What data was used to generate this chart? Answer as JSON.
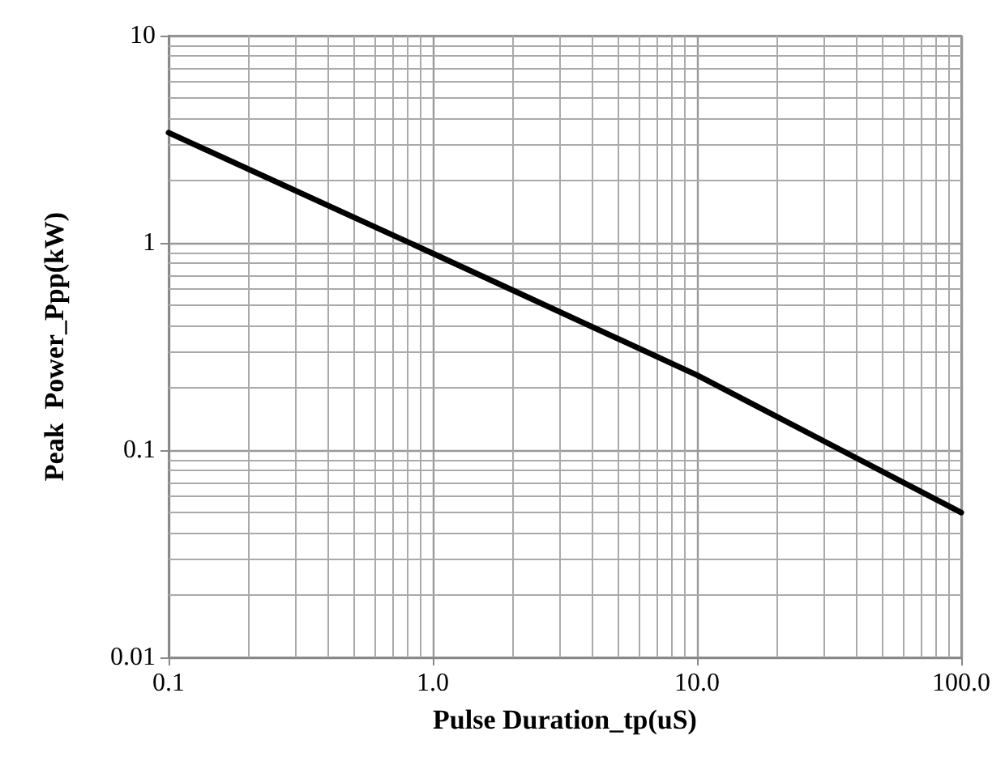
{
  "chart_data": {
    "type": "line",
    "xlabel": "Pulse Duration_tp(uS)",
    "ylabel": "Peak  Power_Ppp(kW)",
    "x": [
      0.1,
      1,
      10,
      100
    ],
    "series": [
      {
        "color": "#000000",
        "values": [
          3.4,
          0.89,
          0.23,
          0.05
        ]
      }
    ],
    "log": "xy",
    "xlim": [
      0.1,
      100
    ],
    "ylim": [
      0.01,
      10
    ],
    "xticks": [
      0.1,
      {
        "value": 1,
        "label": "1.0"
      },
      {
        "value": 10,
        "label": "10.0"
      },
      {
        "value": 100,
        "label": "100.0"
      }
    ],
    "yticks": [
      0.01,
      0.1,
      1,
      10
    ],
    "grid": true,
    "marker": "none",
    "line_style": "solid"
  }
}
